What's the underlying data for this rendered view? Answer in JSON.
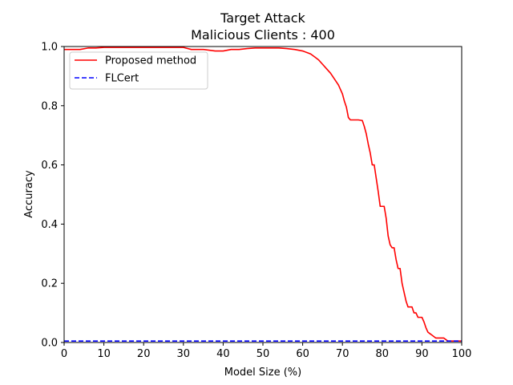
{
  "chart_data": {
    "type": "line",
    "title": "Target Attack",
    "subtitle": "Malicious Clients : 400",
    "xlabel": "Model Size (%)",
    "ylabel": "Accuracy",
    "xlim": [
      0,
      100
    ],
    "ylim": [
      0.0,
      1.0
    ],
    "xticks": [
      0,
      10,
      20,
      30,
      40,
      50,
      60,
      70,
      80,
      90,
      100
    ],
    "yticks": [
      0.0,
      0.2,
      0.4,
      0.6,
      0.8,
      1.0
    ],
    "xtick_labels": [
      "0",
      "10",
      "20",
      "30",
      "40",
      "50",
      "60",
      "70",
      "80",
      "90",
      "100"
    ],
    "ytick_labels": [
      "0.0",
      "0.2",
      "0.4",
      "0.6",
      "0.8",
      "1.0"
    ],
    "grid": false,
    "legend_position": "top-left",
    "series": [
      {
        "name": "Proposed method",
        "color": "#ff0000",
        "style": "solid",
        "x": [
          0,
          2,
          4,
          6,
          8,
          10,
          15,
          20,
          25,
          30,
          32,
          35,
          38,
          40,
          42,
          44,
          46,
          48,
          50,
          52,
          54,
          56,
          58,
          60,
          61,
          62,
          63,
          64,
          65,
          66,
          67,
          68,
          69,
          70,
          70.5,
          71,
          71.5,
          72,
          73,
          74,
          75,
          75.5,
          76,
          76.5,
          77,
          77.5,
          78,
          78.5,
          79,
          79.5,
          80,
          80.5,
          81,
          81.5,
          82,
          82.5,
          83,
          83.5,
          84,
          84.5,
          85,
          85.5,
          86,
          86.5,
          87,
          87.5,
          88,
          88.5,
          89,
          89.5,
          90,
          90.5,
          91,
          91.5,
          92,
          92.5,
          93,
          93.5,
          94,
          94.5,
          95,
          95.5,
          96,
          96.5,
          97,
          98,
          100
        ],
        "y": [
          0.99,
          0.99,
          0.99,
          0.995,
          0.995,
          0.997,
          0.997,
          0.997,
          0.997,
          0.997,
          0.99,
          0.99,
          0.985,
          0.985,
          0.99,
          0.99,
          0.993,
          0.995,
          0.995,
          0.995,
          0.995,
          0.993,
          0.99,
          0.985,
          0.98,
          0.975,
          0.965,
          0.955,
          0.94,
          0.925,
          0.91,
          0.89,
          0.87,
          0.84,
          0.815,
          0.795,
          0.76,
          0.752,
          0.752,
          0.752,
          0.75,
          0.73,
          0.705,
          0.67,
          0.64,
          0.6,
          0.6,
          0.555,
          0.51,
          0.46,
          0.46,
          0.46,
          0.42,
          0.36,
          0.33,
          0.32,
          0.32,
          0.28,
          0.25,
          0.25,
          0.2,
          0.17,
          0.14,
          0.12,
          0.12,
          0.12,
          0.1,
          0.1,
          0.085,
          0.085,
          0.085,
          0.07,
          0.05,
          0.035,
          0.03,
          0.025,
          0.02,
          0.015,
          0.015,
          0.015,
          0.015,
          0.015,
          0.01,
          0.005,
          0.005,
          0.005,
          0.005
        ]
      },
      {
        "name": "FLCert",
        "color": "#0000ff",
        "style": "dashed",
        "x": [
          0,
          100
        ],
        "y": [
          0.005,
          0.005
        ]
      }
    ]
  }
}
